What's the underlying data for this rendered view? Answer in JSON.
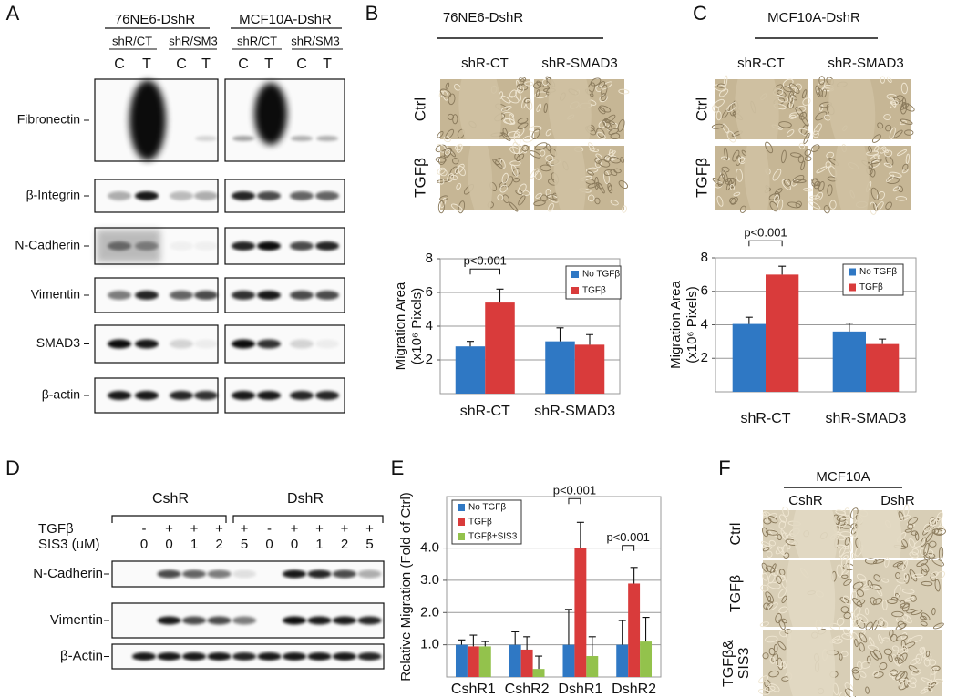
{
  "panels": {
    "A": {
      "letter": "A",
      "groups": [
        {
          "name": "76NE6-DshR",
          "subgroups": [
            "shR/CT",
            "shR/SM3"
          ]
        },
        {
          "name": "MCF10A-DshR",
          "subgroups": [
            "shR/CT",
            "shR/SM3"
          ]
        }
      ],
      "lanes": [
        "C",
        "T",
        "C",
        "T",
        "C",
        "T",
        "C",
        "T"
      ],
      "rows": [
        "Fibronectin",
        "β-Integrin",
        "N-Cadherin",
        "Vimentin",
        "SMAD3",
        "β-actin"
      ]
    },
    "B": {
      "letter": "B",
      "cell_line": "76NE6-DshR",
      "columns": [
        "shR-CT",
        "shR-SMAD3"
      ],
      "rows": [
        "Ctrl",
        "TGFβ"
      ]
    },
    "C": {
      "letter": "C",
      "cell_line": "MCF10A-DshR",
      "columns": [
        "shR-CT",
        "shR-SMAD3"
      ],
      "rows": [
        "Ctrl",
        "TGFβ"
      ]
    },
    "D": {
      "letter": "D",
      "groups": [
        "CshR",
        "DshR"
      ],
      "row_labels": [
        "TGFβ",
        "SIS3 (uM)"
      ],
      "tgf": [
        "-",
        "+",
        "+",
        "+",
        "+",
        "-",
        "+",
        "+",
        "+",
        "+"
      ],
      "sis3": [
        "0",
        "0",
        "1",
        "2",
        "5",
        "0",
        "0",
        "1",
        "2",
        "5"
      ],
      "blots": [
        "N-Cadherin",
        "Vimentin",
        "β-Actin"
      ]
    },
    "E": {
      "letter": "E"
    },
    "F": {
      "letter": "F",
      "cell_line": "MCF10A",
      "columns": [
        "CshR",
        "DshR"
      ],
      "rows": [
        [
          "Ctrl"
        ],
        [
          "TGFβ"
        ],
        [
          "TGFβ&",
          "SIS3"
        ]
      ]
    }
  },
  "chart_data": [
    {
      "type": "bar",
      "y_label": [
        "Migration Area",
        "(x10⁶ Pixels)"
      ],
      "categories": [
        "shR-CT",
        "shR-SMAD3"
      ],
      "series": [
        {
          "name": "No TGFβ",
          "color": "#2f78c4",
          "values": [
            2.8,
            3.1
          ],
          "errors": [
            0.3,
            0.8
          ]
        },
        {
          "name": "TGFβ",
          "color": "#d93b3b",
          "values": [
            5.4,
            2.9
          ],
          "errors": [
            0.8,
            0.6
          ]
        }
      ],
      "ylim": [
        0,
        8
      ],
      "yticks": [
        2,
        4,
        6,
        8
      ],
      "grid": true,
      "annotations": [
        "p<0.001"
      ]
    },
    {
      "type": "bar",
      "y_label": [
        "Migration Area",
        "(x10⁶ Pixels)"
      ],
      "categories": [
        "shR-CT",
        "shR-SMAD3"
      ],
      "series": [
        {
          "name": "No TGFβ",
          "color": "#2f78c4",
          "values": [
            4.05,
            3.6
          ],
          "errors": [
            0.4,
            0.5
          ]
        },
        {
          "name": "TGFβ",
          "color": "#d93b3b",
          "values": [
            7.0,
            2.85
          ],
          "errors": [
            0.5,
            0.3
          ]
        }
      ],
      "ylim": [
        0,
        8
      ],
      "yticks": [
        2,
        4,
        6,
        8
      ],
      "grid": true,
      "annotations": [
        "p<0.001"
      ]
    },
    {
      "type": "bar",
      "y_label": [
        "Relative Migration (Fold of Ctrl)"
      ],
      "categories": [
        "CshR1",
        "CshR2",
        "DshR1",
        "DshR2"
      ],
      "series": [
        {
          "name": "No TGFβ",
          "color": "#2f78c4",
          "values": [
            1.0,
            1.0,
            1.0,
            1.0
          ],
          "errors": [
            0.15,
            0.4,
            1.1,
            0.75
          ]
        },
        {
          "name": "TGFβ",
          "color": "#d93b3b",
          "values": [
            0.95,
            0.85,
            4.0,
            2.9
          ],
          "errors": [
            0.35,
            0.4,
            0.8,
            0.5
          ]
        },
        {
          "name": "TGFβ+SIS3",
          "color": "#93c24c",
          "values": [
            0.95,
            0.25,
            0.65,
            1.1
          ],
          "errors": [
            0.15,
            0.4,
            0.6,
            0.75
          ]
        }
      ],
      "ylim": [
        0,
        5.6
      ],
      "yticks": [
        {
          "value": 1,
          "label": "1.0"
        },
        {
          "value": 2,
          "label": "2.0"
        },
        {
          "value": 3,
          "label": "3.0"
        },
        {
          "value": 4,
          "label": "4.0"
        }
      ],
      "grid": true,
      "annotations": [
        "p<0.001",
        "p<0.001"
      ]
    }
  ]
}
